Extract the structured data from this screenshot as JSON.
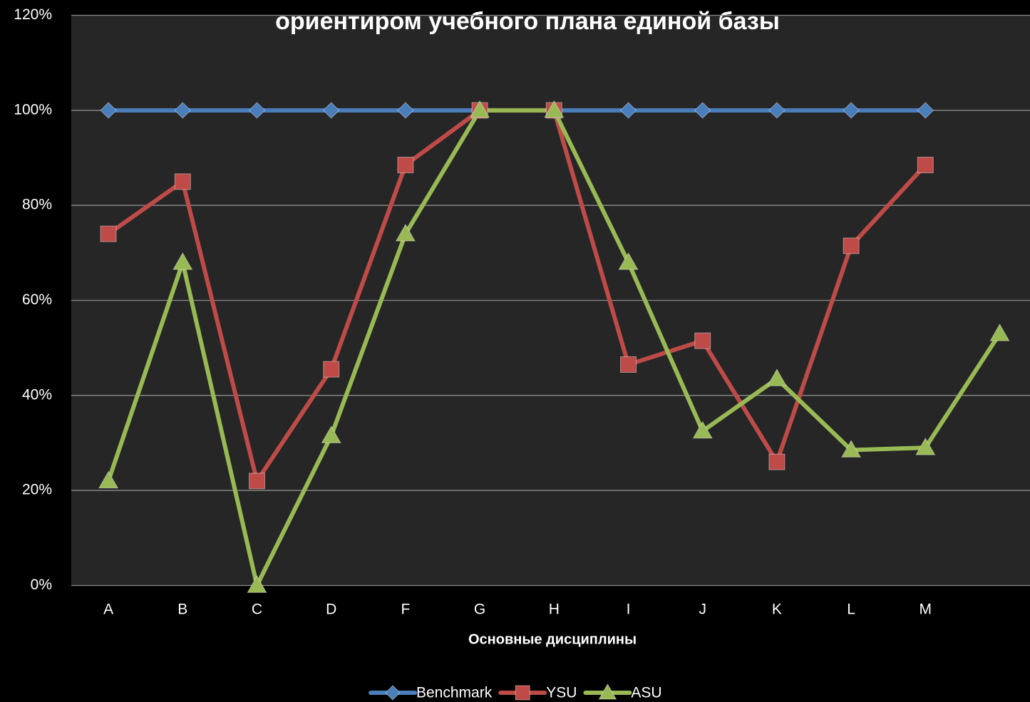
{
  "chart_data": {
    "type": "line",
    "title": "ориентиром учебного плана единой базы",
    "x_label": "Основные дисциплины",
    "categories": [
      "A",
      "B",
      "C",
      "D",
      "F",
      "G",
      "H",
      "I",
      "J",
      "K",
      "L",
      "M",
      null
    ],
    "series": [
      {
        "name": "Benchmark",
        "color": "#4a7ebb",
        "marker": "diamond",
        "values": [
          100,
          100,
          100,
          100,
          100,
          100,
          100,
          100,
          100,
          100,
          100,
          100,
          null
        ]
      },
      {
        "name": "YSU",
        "color": "#be4b48",
        "marker": "square",
        "values": [
          74,
          85,
          22,
          45.5,
          88.5,
          100,
          100,
          46.5,
          51.5,
          26,
          71.5,
          88.5,
          null
        ]
      },
      {
        "name": "ASU",
        "color": "#98b954",
        "marker": "triangle",
        "values": [
          22,
          68,
          0,
          31.5,
          74,
          100,
          100,
          68,
          32.5,
          43.5,
          28.5,
          29,
          53
        ]
      }
    ],
    "ylim": [
      0,
      120
    ],
    "yticks": [
      {
        "value": 0,
        "label": "0%"
      },
      {
        "value": 20,
        "label": "20%"
      },
      {
        "value": 40,
        "label": "40%"
      },
      {
        "value": 60,
        "label": "60%"
      },
      {
        "value": 80,
        "label": "80%"
      },
      {
        "value": 100,
        "label": "100%"
      },
      {
        "value": 120,
        "label": "120%"
      }
    ],
    "grid": true,
    "legend": "bottom"
  }
}
